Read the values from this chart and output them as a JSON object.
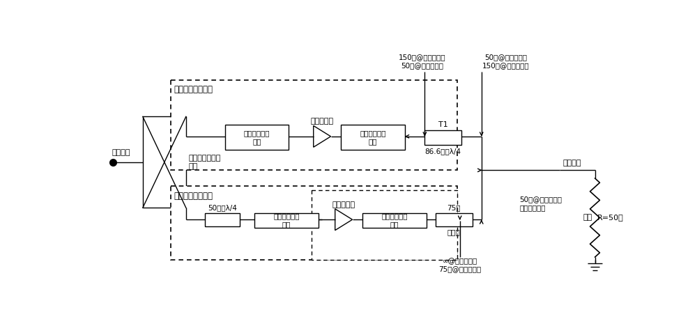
{
  "bg_color": "#ffffff",
  "fig_width": 10.0,
  "fig_height": 4.45,
  "labels": {
    "power_in": "功率输入",
    "power_out": "功率输出",
    "load": "负载",
    "wilkinson": "等分威尔金森功\n分器",
    "carrier_block": "载波功率放大电路",
    "peak_block": "峰值功率放大电路",
    "carrier_input_match": "载波输入匹配\n电路",
    "carrier_amplifier": "载波放大器",
    "carrier_output_match": "载波输出匹配\n电路",
    "peak_input_match": "峰值输入匹配\n电路",
    "peak_amplifier": "峰值放大器",
    "peak_output_match": "峰值输出匹配\n电路",
    "T1": "T1",
    "R50": "R=50欧",
    "carrier_line": "86.6欧，λ/4",
    "peak_line1": "50欧，λ/4",
    "peak_line2": "75欧",
    "compensate": "补偿线",
    "label_top_left": "150欧@低输入功率\n50欧@高输入功率",
    "label_top_right": "50欧@低输入功率\n150欧@高输入功率",
    "label_mid": "50欧@低输入功率\n和高输入功率",
    "label_bot": "∞@低输入功率\n75欧@高输入功率"
  }
}
